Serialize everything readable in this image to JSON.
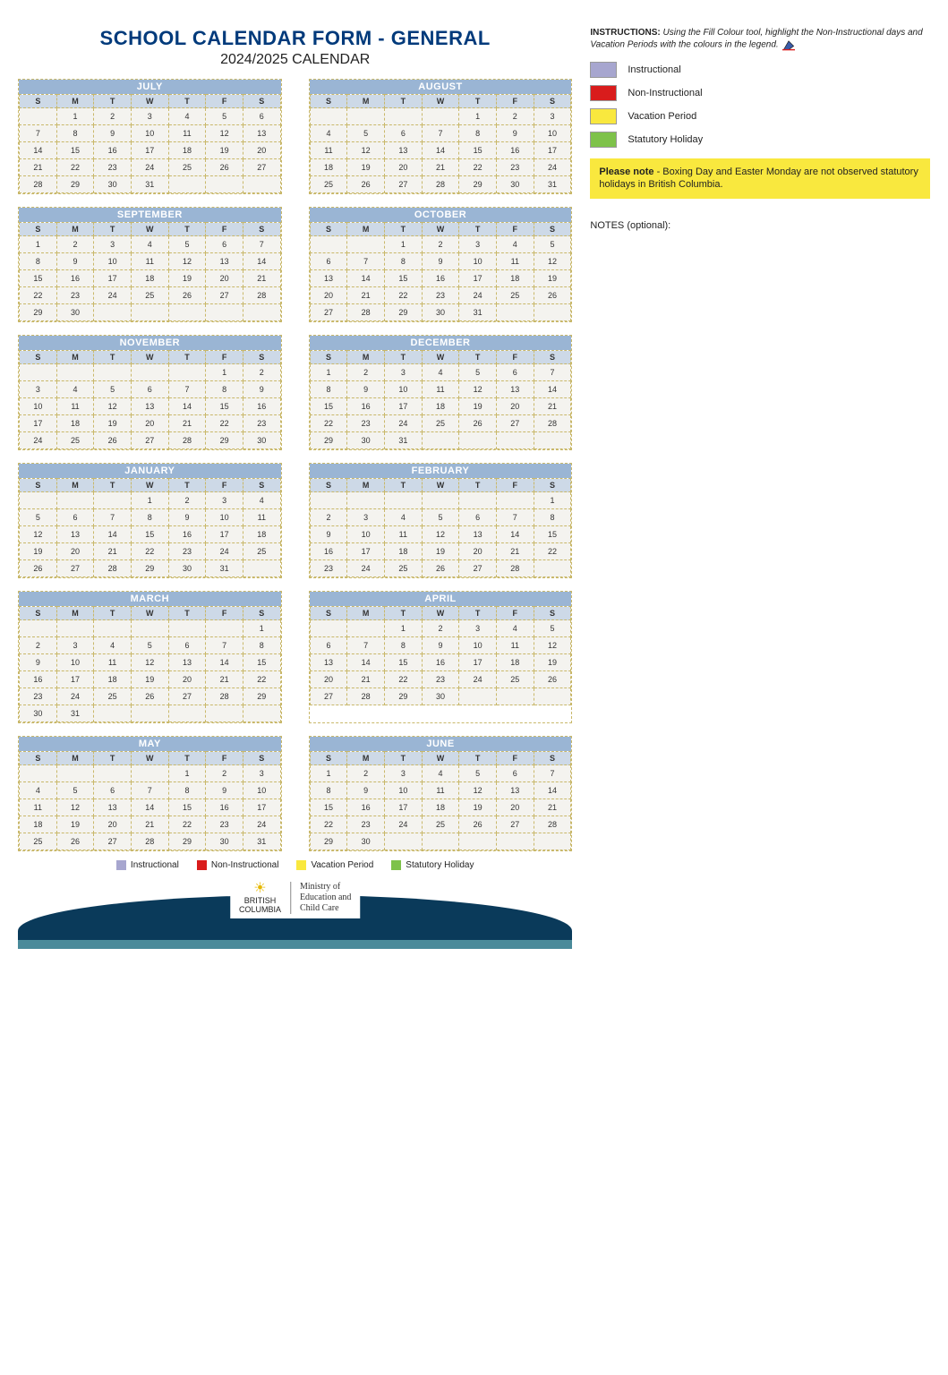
{
  "title": "SCHOOL CALENDAR FORM - GENERAL",
  "subtitle": "2024/2025 CALENDAR",
  "dow": [
    "S",
    "M",
    "T",
    "W",
    "T",
    "F",
    "S"
  ],
  "colors": {
    "inst": "#a7a6cf",
    "noninst": "#d91c1c",
    "vac": "#f9e83e",
    "stat": "#7ec24a",
    "header1": "#9ab5d4",
    "header2": "#cdd9e7",
    "title": "#003a7b"
  },
  "legend": {
    "inst": "Instructional",
    "noninst": "Non-Instructional",
    "vac": "Vacation Period",
    "stat": "Statutory Holiday"
  },
  "instructions_label": "INSTRUCTIONS:",
  "instructions_text": "Using the Fill Colour tool, highlight the Non-Instructional days and Vacation Periods with the colours in the legend.",
  "note_label": "Please note",
  "note_text": " - Boxing Day and Easter Monday are not observed statutory holidays in British Columbia.",
  "notes_optional": "NOTES (optional):",
  "footer": {
    "brand1": "BRITISH",
    "brand2": "COLUMBIA",
    "ministry1": "Ministry of",
    "ministry2": "Education and",
    "ministry3": "Child Care"
  },
  "months": [
    {
      "name": "JULY",
      "start": 1,
      "days": 31,
      "cells": {
        "1": "stat",
        "2": "vac",
        "3": "vac",
        "4": "vac",
        "5": "vac",
        "8": "vac",
        "9": "vac",
        "10": "vac",
        "11": "vac",
        "12": "vac",
        "15": "vac",
        "16": "vac",
        "17": "vac",
        "18": "vac",
        "19": "vac",
        "22": "vac",
        "23": "vac",
        "24": "vac",
        "25": "vac",
        "26": "vac",
        "29": "vac",
        "30": "vac",
        "31": "vac"
      }
    },
    {
      "name": "AUGUST",
      "start": 4,
      "days": 31,
      "cells": {
        "1": "vac",
        "2": "vac",
        "5": "stat",
        "6": "vac",
        "7": "vac",
        "8": "vac",
        "9": "vac",
        "12": "vac",
        "13": "vac",
        "14": "vac",
        "15": "vac",
        "16": "vac",
        "19": "vac",
        "20": "vac",
        "21": "vac",
        "22": "vac",
        "23": "vac",
        "26": "vac",
        "27": "vac",
        "28": "vac",
        "29": "vac",
        "30": "vac"
      }
    },
    {
      "name": "SEPTEMBER",
      "start": 0,
      "days": 30,
      "cells": {
        "2": "stat",
        "3": "noninst",
        "4": "inst",
        "5": "inst",
        "6": "inst",
        "9": "inst",
        "10": "inst",
        "11": "inst",
        "12": "inst",
        "13": "inst",
        "16": "inst",
        "17": "inst",
        "18": "inst",
        "19": "inst",
        "20": "inst",
        "23": "inst",
        "24": "inst",
        "25": "inst",
        "26": "inst",
        "27": "inst",
        "30": "stat"
      }
    },
    {
      "name": "OCTOBER",
      "start": 2,
      "days": 31,
      "cells": {
        "1": "inst",
        "2": "inst",
        "3": "inst",
        "4": "inst",
        "7": "inst",
        "8": "inst",
        "9": "inst",
        "10": "inst",
        "11": "inst",
        "14": "stat",
        "15": "inst",
        "16": "inst",
        "17": "inst",
        "18": "inst",
        "21": "inst",
        "22": "inst",
        "23": "inst",
        "24": "inst",
        "25": "noninst",
        "28": "inst",
        "29": "inst",
        "30": "inst",
        "31": "inst"
      }
    },
    {
      "name": "NOVEMBER",
      "start": 5,
      "days": 30,
      "cells": {
        "1": "inst",
        "4": "inst",
        "5": "inst",
        "6": "inst",
        "7": "inst",
        "8": "inst",
        "11": "stat",
        "12": "inst",
        "13": "inst",
        "14": "inst",
        "15": "inst",
        "18": "noninst",
        "19": "inst",
        "20": "inst",
        "21": "inst",
        "22": "inst",
        "25": "inst",
        "26": "inst",
        "27": "inst",
        "28": "inst",
        "29": "inst"
      }
    },
    {
      "name": "DECEMBER",
      "start": 0,
      "days": 31,
      "cells": {
        "2": "inst",
        "3": "inst",
        "4": "inst",
        "5": "inst",
        "6": "inst",
        "9": "inst",
        "10": "inst",
        "11": "inst",
        "12": "inst",
        "13": "inst",
        "16": "inst",
        "17": "inst",
        "18": "inst",
        "19": "inst",
        "20": "inst",
        "23": "vac",
        "24": "vac",
        "25": "stat",
        "26": "vac",
        "27": "vac",
        "30": "vac",
        "31": "vac"
      }
    },
    {
      "name": "JANUARY",
      "start": 3,
      "days": 31,
      "cells": {
        "1": "stat",
        "2": "vac",
        "3": "vac",
        "6": "inst",
        "7": "inst",
        "8": "inst",
        "9": "inst",
        "10": "inst",
        "13": "inst",
        "14": "inst",
        "15": "inst",
        "16": "inst",
        "17": "inst",
        "20": "inst",
        "21": "inst",
        "22": "inst",
        "23": "inst",
        "24": "inst",
        "27": "inst",
        "28": "inst",
        "29": "inst",
        "30": "inst",
        "31": "inst"
      }
    },
    {
      "name": "FEBRUARY",
      "start": 6,
      "days": 28,
      "cells": {
        "3": "inst",
        "4": "inst",
        "5": "inst",
        "6": "inst",
        "7": "noninst",
        "10": "inst",
        "11": "inst",
        "12": "inst",
        "13": "inst",
        "14": "inst",
        "17": "stat",
        "18": "inst",
        "19": "inst",
        "20": "inst",
        "21": "inst",
        "24": "inst",
        "25": "inst",
        "26": "inst",
        "27": "inst",
        "28": "inst"
      }
    },
    {
      "name": "MARCH",
      "start": 6,
      "days": 31,
      "cells": {
        "3": "inst",
        "4": "inst",
        "5": "inst",
        "6": "inst",
        "7": "inst",
        "10": "inst",
        "11": "inst",
        "12": "inst",
        "13": "inst",
        "14": "inst",
        "17": "vac",
        "18": "vac",
        "19": "vac",
        "20": "vac",
        "21": "vac",
        "24": "vac",
        "25": "vac",
        "26": "vac",
        "27": "vac",
        "28": "vac",
        "31": "inst"
      }
    },
    {
      "name": "APRIL",
      "start": 2,
      "days": 30,
      "cells": {
        "1": "inst",
        "2": "inst",
        "3": "inst",
        "4": "inst",
        "7": "inst",
        "8": "inst",
        "9": "inst",
        "10": "inst",
        "11": "inst",
        "14": "inst",
        "15": "inst",
        "16": "inst",
        "17": "inst",
        "18": "stat",
        "21": "vac",
        "22": "noninst",
        "23": "inst",
        "24": "inst",
        "25": "inst",
        "28": "inst",
        "29": "inst",
        "30": "inst"
      }
    },
    {
      "name": "MAY",
      "start": 4,
      "days": 31,
      "cells": {
        "1": "inst",
        "2": "inst",
        "5": "inst",
        "6": "inst",
        "7": "inst",
        "8": "inst",
        "9": "inst",
        "12": "inst",
        "13": "inst",
        "14": "inst",
        "15": "inst",
        "16": "noninst",
        "19": "stat",
        "20": "inst",
        "21": "inst",
        "22": "inst",
        "23": "inst",
        "26": "inst",
        "27": "inst",
        "28": "inst",
        "29": "inst",
        "30": "inst"
      }
    },
    {
      "name": "JUNE",
      "start": 0,
      "days": 30,
      "cells": {
        "2": "inst",
        "3": "inst",
        "4": "inst",
        "5": "inst",
        "6": "inst",
        "9": "inst",
        "10": "inst",
        "11": "inst",
        "12": "inst",
        "13": "inst",
        "16": "inst",
        "17": "inst",
        "18": "inst",
        "19": "inst",
        "20": "inst",
        "23": "inst",
        "24": "inst",
        "25": "inst",
        "26": "inst",
        "27": "noninst",
        "30": "vac"
      }
    }
  ]
}
